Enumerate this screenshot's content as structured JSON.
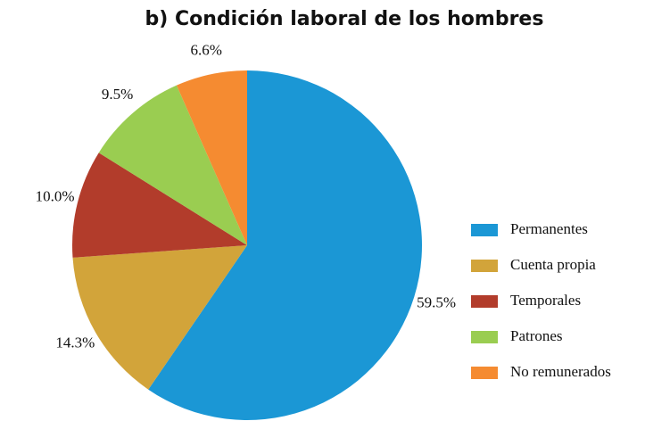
{
  "chart_data": {
    "type": "pie",
    "title": "b) Condición laboral de los hombres",
    "categories": [
      "Permanentes",
      "Cuenta propia",
      "Temporales",
      "Patrones",
      "No remunerados"
    ],
    "values": [
      59.5,
      14.3,
      10.0,
      9.5,
      6.6
    ],
    "value_labels": [
      "59.5%",
      "14.3%",
      "10.0%",
      "9.5%",
      "6.6%"
    ],
    "colors": [
      "#1b97d5",
      "#d2a43a",
      "#b23c2b",
      "#9acd51",
      "#f58b31"
    ],
    "legend": "right"
  }
}
